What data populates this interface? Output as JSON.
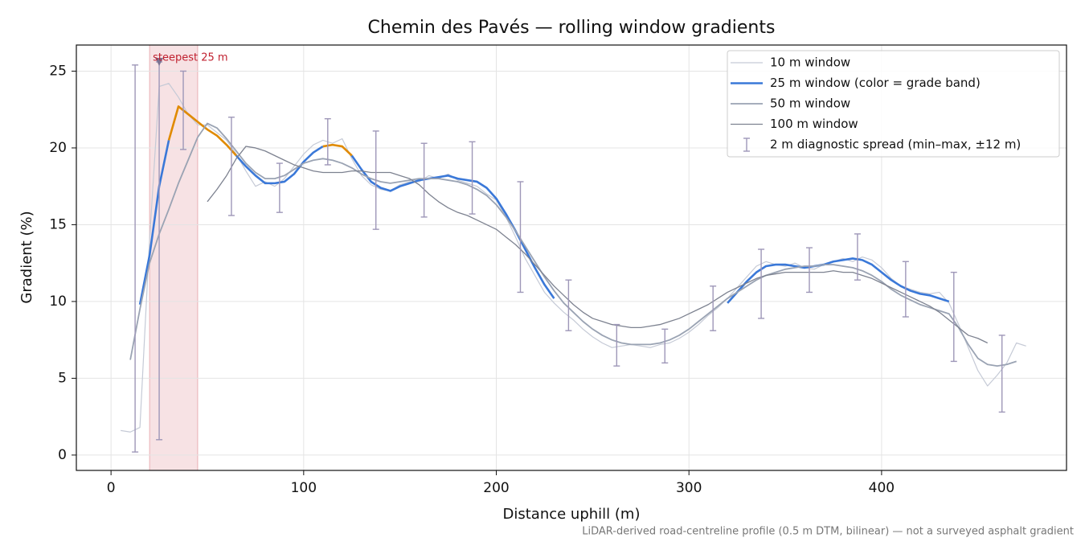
{
  "chart_data": {
    "type": "line",
    "title": "Chemin des Pavés — rolling window gradients",
    "xlabel": "Distance uphill (m)",
    "ylabel": "Gradient (%)",
    "footnote": "LiDAR-derived road-centreline profile (0.5 m DTM, bilinear) — not a surveyed asphalt gradient",
    "xlim": [
      -18,
      496
    ],
    "ylim": [
      -1,
      26.7
    ],
    "xticks": [
      0,
      100,
      200,
      300,
      400
    ],
    "yticks": [
      0,
      5,
      10,
      15,
      20,
      25
    ],
    "grid": true,
    "legend": "upper right",
    "x": [
      5,
      10,
      15,
      20,
      25,
      30,
      35,
      40,
      45,
      50,
      55,
      60,
      65,
      70,
      75,
      80,
      85,
      90,
      95,
      100,
      105,
      110,
      115,
      120,
      125,
      130,
      135,
      140,
      145,
      150,
      155,
      160,
      165,
      170,
      175,
      180,
      185,
      190,
      195,
      200,
      205,
      210,
      215,
      220,
      225,
      230,
      235,
      240,
      245,
      250,
      255,
      260,
      265,
      270,
      275,
      280,
      285,
      290,
      295,
      300,
      305,
      310,
      315,
      320,
      325,
      330,
      335,
      340,
      345,
      350,
      355,
      360,
      365,
      370,
      375,
      380,
      385,
      390,
      395,
      400,
      405,
      410,
      415,
      420,
      425,
      430,
      435,
      440,
      445,
      450,
      455,
      460,
      465,
      470,
      475
    ],
    "series": [
      {
        "name": "10 m window",
        "color": "#c5cad6",
        "width": 1.2,
        "values": [
          1.6,
          1.5,
          1.8,
          14,
          24.0,
          24.2,
          23.3,
          22.2,
          21.5,
          21.5,
          21.0,
          20.5,
          19.6,
          18.5,
          17.5,
          17.8,
          17.5,
          18.0,
          18.8,
          19.6,
          20.2,
          20.5,
          20.3,
          20.6,
          19.3,
          18.2,
          17.6,
          17.3,
          17.2,
          17.6,
          17.8,
          17.8,
          18.2,
          18.0,
          18.3,
          17.9,
          17.7,
          17.5,
          17.0,
          16.6,
          15.5,
          14.2,
          12.8,
          11.7,
          10.6,
          9.9,
          9.3,
          8.8,
          8.2,
          7.7,
          7.3,
          7.0,
          7.1,
          7.2,
          7.1,
          7.0,
          7.2,
          7.3,
          7.6,
          8.0,
          8.5,
          9.1,
          9.6,
          10.2,
          10.9,
          11.6,
          12.3,
          12.6,
          12.4,
          12.3,
          12.5,
          12.2,
          12.1,
          12.4,
          12.6,
          12.8,
          12.6,
          12.9,
          12.7,
          12.2,
          11.5,
          11.0,
          10.8,
          10.6,
          10.5,
          10.6,
          9.9,
          8.5,
          7.0,
          5.5,
          4.5,
          5.2,
          6.0,
          7.3,
          7.1
        ]
      },
      {
        "name": "25 m window (color = grade band)",
        "color": "#3a78d8",
        "highlight_above": 20,
        "highlight_color": "#e08a00",
        "width": 2.6,
        "values": [
          null,
          null,
          9.8,
          13,
          17.5,
          20.5,
          22.7,
          22.2,
          21.7,
          21.2,
          20.8,
          20.2,
          19.5,
          18.8,
          18.2,
          17.7,
          17.7,
          17.8,
          18.3,
          19.1,
          19.7,
          20.1,
          20.2,
          20.1,
          19.5,
          18.6,
          17.8,
          17.4,
          17.2,
          17.5,
          17.7,
          17.9,
          18.0,
          18.1,
          18.2,
          18.0,
          17.9,
          17.8,
          17.4,
          16.7,
          15.7,
          14.6,
          13.4,
          12.2,
          11.1,
          10.2,
          null,
          null,
          null,
          null,
          null,
          null,
          null,
          null,
          null,
          null,
          null,
          null,
          null,
          null,
          null,
          null,
          null,
          9.9,
          10.6,
          11.3,
          11.9,
          12.3,
          12.4,
          12.4,
          12.3,
          12.2,
          12.3,
          12.4,
          12.6,
          12.7,
          12.8,
          12.7,
          12.4,
          11.9,
          11.4,
          11.0,
          10.7,
          10.5,
          10.4,
          10.2,
          10.0,
          null,
          null,
          null,
          null,
          null,
          null,
          null,
          null
        ]
      },
      {
        "name": "50 m window",
        "color": "#9aa3b3",
        "width": 1.8,
        "values": [
          null,
          6.2,
          9.5,
          12.5,
          14.4,
          16.0,
          17.7,
          19.2,
          20.7,
          21.6,
          21.3,
          20.6,
          19.8,
          19.0,
          18.4,
          18.0,
          18.0,
          18.2,
          18.6,
          19.0,
          19.2,
          19.3,
          19.2,
          19.0,
          18.7,
          18.3,
          18.0,
          17.8,
          17.7,
          17.8,
          17.9,
          18.0,
          18.0,
          18.0,
          17.9,
          17.8,
          17.6,
          17.3,
          16.9,
          16.3,
          15.5,
          14.6,
          13.6,
          12.6,
          11.6,
          10.7,
          9.9,
          9.3,
          8.7,
          8.2,
          7.8,
          7.5,
          7.3,
          7.2,
          7.2,
          7.2,
          7.3,
          7.5,
          7.8,
          8.2,
          8.7,
          9.2,
          9.7,
          10.2,
          10.6,
          11.0,
          11.4,
          11.7,
          11.9,
          12.1,
          12.2,
          12.3,
          12.3,
          12.4,
          12.4,
          12.3,
          12.2,
          12.0,
          11.7,
          11.3,
          10.8,
          10.4,
          10.1,
          9.8,
          9.6,
          9.4,
          9.2,
          8.3,
          7.2,
          6.3,
          5.9,
          5.8,
          5.9,
          6.1,
          null
        ]
      },
      {
        "name": "100 m window",
        "color": "#7d8290",
        "width": 1.3,
        "values": [
          null,
          null,
          null,
          null,
          null,
          null,
          null,
          null,
          null,
          16.5,
          17.3,
          18.2,
          19.3,
          20.1,
          20.0,
          19.8,
          19.5,
          19.2,
          18.9,
          18.7,
          18.5,
          18.4,
          18.4,
          18.4,
          18.5,
          18.5,
          18.4,
          18.4,
          18.4,
          18.2,
          18.0,
          17.6,
          17.0,
          16.5,
          16.1,
          15.8,
          15.6,
          15.3,
          15.0,
          14.7,
          14.2,
          13.7,
          13.1,
          12.4,
          11.7,
          11.0,
          10.4,
          9.8,
          9.3,
          8.9,
          8.7,
          8.5,
          8.4,
          8.3,
          8.3,
          8.4,
          8.5,
          8.7,
          8.9,
          9.2,
          9.5,
          9.8,
          10.2,
          10.6,
          10.9,
          11.2,
          11.5,
          11.7,
          11.8,
          11.9,
          11.9,
          11.9,
          11.9,
          11.9,
          12.0,
          11.9,
          11.9,
          11.7,
          11.5,
          11.2,
          10.9,
          10.6,
          10.3,
          10.0,
          9.7,
          9.3,
          8.8,
          8.3,
          7.8,
          7.6,
          7.3,
          null,
          null,
          null,
          null
        ]
      }
    ],
    "errorbars": {
      "name": "2 m diagnostic spread (min–max, ±12 m)",
      "color": "#9e97b8",
      "x": [
        12.5,
        25,
        37.5,
        62.5,
        87.5,
        112.5,
        137.5,
        162.5,
        187.5,
        212.5,
        237.5,
        262.5,
        287.5,
        312.5,
        337.5,
        362.5,
        387.5,
        412.5,
        437.5,
        462.5
      ],
      "low": [
        0.2,
        1.0,
        19.9,
        15.6,
        15.8,
        18.9,
        14.7,
        15.5,
        15.7,
        10.6,
        8.1,
        5.8,
        6.0,
        8.1,
        8.9,
        10.6,
        11.4,
        9.0,
        6.1,
        2.8
      ],
      "high": [
        25.4,
        25.6,
        25.0,
        22.0,
        19.0,
        21.9,
        21.1,
        20.3,
        20.4,
        17.8,
        11.4,
        8.5,
        8.2,
        11.0,
        13.4,
        13.5,
        14.4,
        12.6,
        11.9,
        7.8
      ]
    },
    "annotation": {
      "text": "steepest 25 m",
      "span": [
        20,
        45
      ],
      "marker": [
        25,
        25.6
      ],
      "color": "#c0202f"
    }
  }
}
